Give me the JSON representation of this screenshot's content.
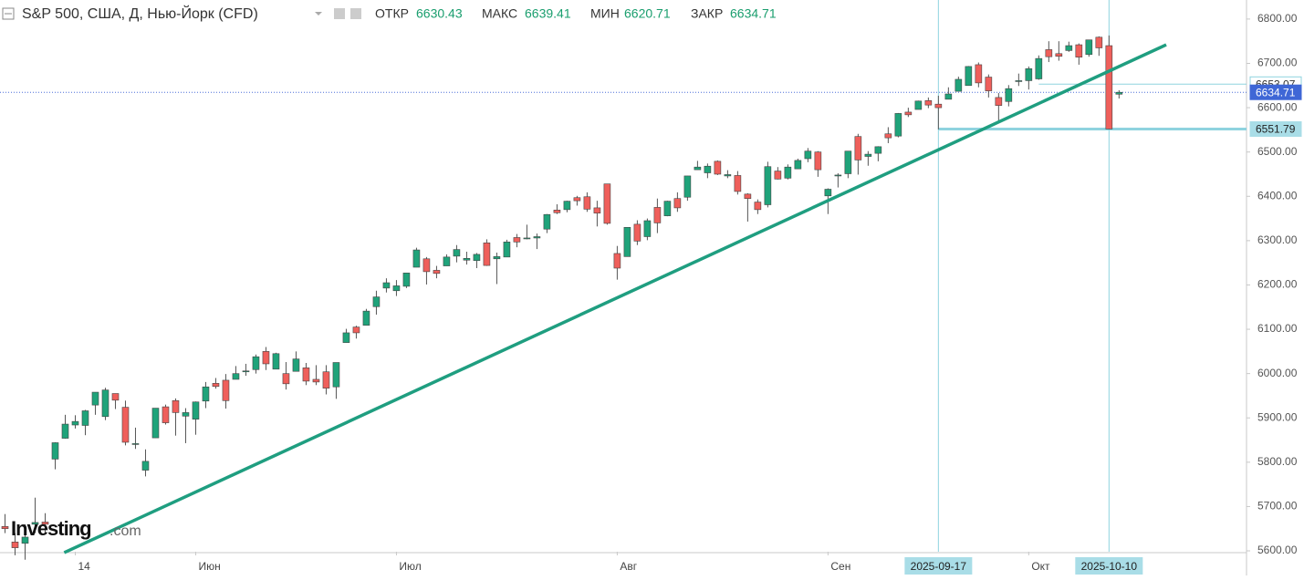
{
  "chart_data": {
    "type": "candlestick",
    "title": "S&P 500, США, Д, Нью-Йорк (CFD)",
    "header_labels": {
      "open": "ОТКР",
      "high": "МАКС",
      "low": "МИН",
      "close": "ЗАКР"
    },
    "watermark": [
      "Investing",
      ".com"
    ],
    "up_color": "#1fa37a",
    "down_color": "#ef5f5b",
    "open": [
      5655,
      5620,
      5617,
      5660,
      5665,
      5807,
      5854,
      5884,
      5883,
      5929,
      5903,
      5955,
      5924,
      5841,
      5782,
      5855,
      5925,
      5939,
      5904,
      5897,
      5938,
      5978,
      5985,
      5987,
      6004,
      6009,
      6050,
      6010,
      6000,
      6005,
      6013,
      5987,
      6004,
      5970,
      6070,
      6105,
      6109,
      6151,
      6193,
      6187,
      6197,
      6240,
      6259,
      6233,
      6243,
      6265,
      6256,
      6255,
      6295,
      6259,
      6263,
      6307,
      6304,
      6306,
      6326,
      6369,
      6370,
      6397,
      6399,
      6374,
      6428,
      6271,
      6264,
      6337,
      6309,
      6375,
      6356,
      6395,
      6398,
      6460,
      6453,
      6479,
      6446,
      6447,
      6405,
      6387,
      6381,
      6457,
      6441,
      6462,
      6485,
      6500,
      6401,
      6446,
      6451,
      6535,
      6490,
      6497,
      6541,
      6536,
      6590,
      6596,
      6616,
      6608,
      6619,
      6637,
      6650,
      6697,
      6669,
      6623,
      6614,
      6661,
      6661,
      6665,
      6731,
      6722,
      6729,
      6742,
      6720,
      6759,
      6740,
      6630.43
    ],
    "high": [
      5683,
      5640,
      5660,
      5720,
      5685,
      5845,
      5907,
      5906,
      5918,
      5958,
      5968,
      5955,
      5939,
      5878,
      5829,
      5922,
      5930,
      5944,
      5922,
      5937,
      5981,
      5990,
      5999,
      6017,
      6022,
      6043,
      6060,
      6047,
      6026,
      6050,
      6024,
      6019,
      6019,
      6025,
      6101,
      6108,
      6146,
      6187,
      6215,
      6211,
      6227,
      6284,
      6263,
      6243,
      6269,
      6290,
      6275,
      6272,
      6303,
      6273,
      6302,
      6315,
      6336,
      6316,
      6360,
      6382,
      6390,
      6401,
      6409,
      6390,
      6428,
      6288,
      6330,
      6346,
      6350,
      6395,
      6390,
      6409,
      6446,
      6480,
      6474,
      6481,
      6459,
      6457,
      6407,
      6393,
      6478,
      6466,
      6472,
      6485,
      6509,
      6502,
      6418,
      6452,
      6502,
      6541,
      6502,
      6513,
      6556,
      6588,
      6600,
      6616,
      6623,
      6627,
      6646,
      6670,
      6694,
      6702,
      6675,
      6633,
      6651,
      6677,
      6693,
      6718,
      6750,
      6750,
      6749,
      6745,
      6753,
      6761,
      6763,
      6639.41
    ],
    "low": [
      5640,
      5590,
      5580,
      5640,
      5642,
      5784,
      5853,
      5876,
      5861,
      5907,
      5895,
      5920,
      5838,
      5830,
      5768,
      5855,
      5885,
      5860,
      5843,
      5862,
      5922,
      5966,
      5921,
      5987,
      5995,
      6000,
      6008,
      6010,
      5964,
      6005,
      5974,
      5974,
      5953,
      5943,
      6070,
      6079,
      6109,
      6133,
      6183,
      6175,
      6193,
      6240,
      6201,
      6215,
      6243,
      6251,
      6246,
      6238,
      6243,
      6202,
      6263,
      6285,
      6303,
      6281,
      6317,
      6360,
      6364,
      6379,
      6365,
      6332,
      6336,
      6212,
      6264,
      6290,
      6301,
      6317,
      6355,
      6365,
      6390,
      6460,
      6441,
      6448,
      6441,
      6404,
      6343,
      6360,
      6375,
      6438,
      6438,
      6462,
      6477,
      6444,
      6360,
      6420,
      6441,
      6449,
      6469,
      6479,
      6520,
      6533,
      6579,
      6596,
      6599,
      6551,
      6619,
      6637,
      6650,
      6646,
      6623,
      6570,
      6603,
      6649,
      6641,
      6663,
      6703,
      6706,
      6726,
      6697,
      6715,
      6717,
      6551,
      6620.71
    ],
    "close": [
      5650,
      5607,
      5631,
      5664,
      5660,
      5844,
      5886,
      5892,
      5916,
      5958,
      5963,
      5940,
      5845,
      5842,
      5802,
      5922,
      5889,
      5912,
      5912,
      5936,
      5970,
      5971,
      5939,
      6000,
      6006,
      6038,
      6022,
      6045,
      5977,
      6033,
      5983,
      5981,
      5967,
      6025,
      6092,
      6092,
      6141,
      6173,
      6205,
      6198,
      6227,
      6279,
      6230,
      6226,
      6263,
      6280,
      6260,
      6269,
      6244,
      6264,
      6297,
      6297,
      6306,
      6309,
      6359,
      6363,
      6389,
      6390,
      6371,
      6362,
      6339,
      6238,
      6330,
      6299,
      6345,
      6340,
      6389,
      6374,
      6446,
      6466,
      6468,
      6450,
      6449,
      6411,
      6395,
      6370,
      6467,
      6439,
      6466,
      6481,
      6502,
      6460,
      6416,
      6448,
      6502,
      6482,
      6495,
      6512,
      6532,
      6587,
      6584,
      6615,
      6606,
      6600,
      6631,
      6664,
      6693,
      6656,
      6638,
      6605,
      6643,
      6661,
      6688,
      6711,
      6715,
      6716,
      6740,
      6714,
      6753,
      6735,
      6552,
      6634.71
    ],
    "xlim": [
      -0.5,
      123.7
    ],
    "xticks": [
      {
        "value": 7,
        "label": "14"
      },
      {
        "value": 19,
        "label": "Июн"
      },
      {
        "value": 39,
        "label": "Июл"
      },
      {
        "value": 61,
        "label": "Авг"
      },
      {
        "value": 82,
        "label": "Сен"
      },
      {
        "value": 102,
        "label": "Окт"
      }
    ],
    "ylim": [
      5598,
      6843
    ],
    "yticks": [
      {
        "value": 5600,
        "label": "5600.00"
      },
      {
        "value": 5700,
        "label": "5700.00"
      },
      {
        "value": 5800,
        "label": "5800.00"
      },
      {
        "value": 5900,
        "label": "5900.00"
      },
      {
        "value": 6000,
        "label": "6000.00"
      },
      {
        "value": 6100,
        "label": "6100.00"
      },
      {
        "value": 6200,
        "label": "6200.00"
      },
      {
        "value": 6300,
        "label": "6300.00"
      },
      {
        "value": 6400,
        "label": "6400.00"
      },
      {
        "value": 6500,
        "label": "6500.00"
      },
      {
        "value": 6600,
        "label": "6600.00"
      },
      {
        "value": 6700,
        "label": "6700.00"
      },
      {
        "value": 6800,
        "label": "6800.00"
      }
    ],
    "trend_line": {
      "x": [
        5.9,
        115.7
      ],
      "y": [
        5596,
        6742
      ],
      "color": "#1f9e80"
    },
    "hlines": [
      {
        "value": 6653.07,
        "from": 103
      },
      {
        "value": 6551.79,
        "from": 93
      }
    ],
    "markers": [
      {
        "index": 93,
        "label": "2025-09-17"
      },
      {
        "index": 110,
        "label": "2025-10-10"
      }
    ]
  }
}
